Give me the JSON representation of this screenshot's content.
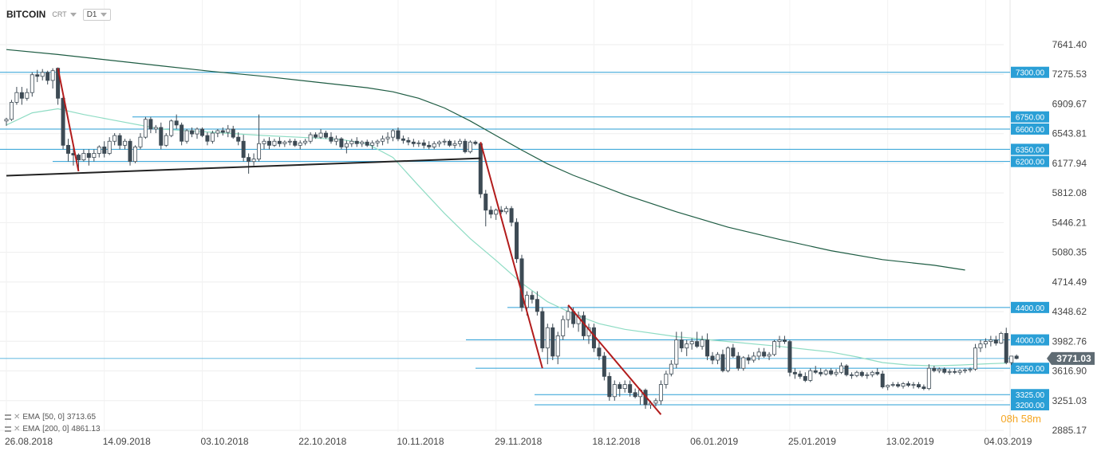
{
  "header": {
    "symbol": "BITCOIN",
    "market": "CRT",
    "timeframe": "D1"
  },
  "indicators": [
    {
      "label": "EMA",
      "params": "[50, 0]",
      "value": "3713.65",
      "color": "#8fdcc4"
    },
    {
      "label": "EMA",
      "params": "[200, 0]",
      "value": "4861.13",
      "color": "#1e5c43"
    }
  ],
  "timer": "08h 58m",
  "colors": {
    "up": "#ffffff",
    "down": "#3d4a54",
    "hline": "#2a9fd6",
    "trend": "#222222",
    "red": "#b21c1c",
    "price_tag": "#5f6b73"
  },
  "chart_data": {
    "type": "candlestick",
    "y_ticks": [
      "7641.40",
      "7275.53",
      "6909.67",
      "6543.81",
      "6177.94",
      "5812.08",
      "5446.21",
      "5080.35",
      "4714.49",
      "4348.62",
      "3982.76",
      "3616.90",
      "3251.03",
      "2885.17"
    ],
    "x_ticks": [
      "26.08.2018",
      "14.09.2018",
      "03.10.2018",
      "22.10.2018",
      "10.11.2018",
      "29.11.2018",
      "18.12.2018",
      "06.01.2019",
      "25.01.2019",
      "13.02.2019",
      "04.03.2019"
    ],
    "x_start": "2018-08-26",
    "ylim": [
      2885.17,
      7641.4
    ],
    "current_price": "3771.03",
    "levels": [
      "7300.00",
      "6750.00",
      "6600.00",
      "6350.00",
      "6200.00",
      "4400.00",
      "4000.00",
      "3650.00",
      "3325.00",
      "3200.00"
    ],
    "ema50": [
      [
        0,
        6650
      ],
      [
        5,
        6800
      ],
      [
        10,
        6850
      ],
      [
        15,
        6780
      ],
      [
        20,
        6720
      ],
      [
        30,
        6600
      ],
      [
        40,
        6560
      ],
      [
        50,
        6520
      ],
      [
        60,
        6490
      ],
      [
        65,
        6470
      ],
      [
        70,
        6420
      ],
      [
        75,
        6250
      ],
      [
        80,
        5900
      ],
      [
        85,
        5560
      ],
      [
        90,
        5250
      ],
      [
        95,
        4980
      ],
      [
        100,
        4700
      ],
      [
        105,
        4470
      ],
      [
        110,
        4320
      ],
      [
        115,
        4200
      ],
      [
        120,
        4130
      ],
      [
        130,
        4040
      ],
      [
        140,
        3980
      ],
      [
        150,
        3920
      ],
      [
        160,
        3850
      ],
      [
        165,
        3790
      ],
      [
        170,
        3720
      ],
      [
        175,
        3690
      ],
      [
        180,
        3680
      ],
      [
        185,
        3690
      ],
      [
        190,
        3705
      ],
      [
        194,
        3713.65
      ]
    ],
    "ema200": [
      [
        0,
        7580
      ],
      [
        10,
        7520
      ],
      [
        20,
        7450
      ],
      [
        30,
        7380
      ],
      [
        40,
        7310
      ],
      [
        50,
        7250
      ],
      [
        60,
        7180
      ],
      [
        70,
        7110
      ],
      [
        75,
        7060
      ],
      [
        80,
        6980
      ],
      [
        85,
        6860
      ],
      [
        90,
        6700
      ],
      [
        95,
        6520
      ],
      [
        100,
        6340
      ],
      [
        105,
        6170
      ],
      [
        110,
        6030
      ],
      [
        120,
        5790
      ],
      [
        130,
        5580
      ],
      [
        140,
        5390
      ],
      [
        150,
        5240
      ],
      [
        160,
        5100
      ],
      [
        170,
        4990
      ],
      [
        180,
        4920
      ],
      [
        186,
        4861.13
      ]
    ],
    "trendlines": [
      {
        "color": "trend",
        "points": [
          [
            0,
            6025
          ],
          [
            92,
            6240
          ]
        ]
      },
      {
        "color": "red",
        "points": [
          [
            10,
            7350
          ],
          [
            14,
            6080
          ]
        ]
      },
      {
        "color": "red",
        "points": [
          [
            92,
            6440
          ],
          [
            104,
            3650
          ]
        ]
      },
      {
        "color": "red",
        "points": [
          [
            109,
            4430
          ],
          [
            127,
            3080
          ]
        ]
      }
    ],
    "candles": [
      [
        6700,
        6740,
        6640,
        6720
      ],
      [
        6720,
        6960,
        6700,
        6930
      ],
      [
        6930,
        7120,
        6900,
        7050
      ],
      [
        7050,
        7120,
        6900,
        6980
      ],
      [
        6980,
        7100,
        6950,
        7050
      ],
      [
        7050,
        7300,
        7000,
        7270
      ],
      [
        7270,
        7330,
        7180,
        7250
      ],
      [
        7250,
        7340,
        7200,
        7300
      ],
      [
        7300,
        7320,
        7150,
        7200
      ],
      [
        7200,
        7350,
        7100,
        7320
      ],
      [
        7350,
        7360,
        6900,
        6980
      ],
      [
        6980,
        7000,
        6350,
        6400
      ],
      [
        6400,
        6480,
        6200,
        6300
      ],
      [
        6300,
        6420,
        6150,
        6280
      ],
      [
        6280,
        6300,
        6100,
        6220
      ],
      [
        6220,
        6350,
        6200,
        6300
      ],
      [
        6300,
        6350,
        6150,
        6250
      ],
      [
        6250,
        6350,
        6200,
        6300
      ],
      [
        6300,
        6400,
        6250,
        6380
      ],
      [
        6380,
        6450,
        6250,
        6300
      ],
      [
        6300,
        6500,
        6280,
        6450
      ],
      [
        6450,
        6550,
        6400,
        6520
      ],
      [
        6520,
        6550,
        6350,
        6400
      ],
      [
        6400,
        6480,
        6350,
        6450
      ],
      [
        6450,
        6480,
        6150,
        6200
      ],
      [
        6200,
        6400,
        6180,
        6380
      ],
      [
        6380,
        6550,
        6350,
        6500
      ],
      [
        6500,
        6750,
        6480,
        6720
      ],
      [
        6720,
        6750,
        6550,
        6600
      ],
      [
        6600,
        6650,
        6550,
        6620
      ],
      [
        6620,
        6680,
        6350,
        6400
      ],
      [
        6400,
        6550,
        6380,
        6520
      ],
      [
        6520,
        6720,
        6500,
        6700
      ],
      [
        6700,
        6780,
        6600,
        6650
      ],
      [
        6650,
        6680,
        6400,
        6450
      ],
      [
        6450,
        6600,
        6420,
        6580
      ],
      [
        6580,
        6620,
        6500,
        6540
      ],
      [
        6540,
        6620,
        6480,
        6600
      ],
      [
        6600,
        6620,
        6500,
        6520
      ],
      [
        6520,
        6560,
        6400,
        6450
      ],
      [
        6450,
        6580,
        6420,
        6550
      ],
      [
        6550,
        6600,
        6500,
        6580
      ],
      [
        6580,
        6620,
        6520,
        6560
      ],
      [
        6560,
        6650,
        6500,
        6600
      ],
      [
        6600,
        6640,
        6480,
        6500
      ],
      [
        6500,
        6560,
        6400,
        6450
      ],
      [
        6450,
        6530,
        6200,
        6250
      ],
      [
        6250,
        6300,
        6050,
        6200
      ],
      [
        6200,
        6300,
        6150,
        6230
      ],
      [
        6230,
        6780,
        6200,
        6420
      ],
      [
        6420,
        6480,
        6350,
        6450
      ],
      [
        6450,
        6500,
        6350,
        6400
      ],
      [
        6400,
        6480,
        6380,
        6450
      ],
      [
        6450,
        6500,
        6380,
        6420
      ],
      [
        6420,
        6460,
        6380,
        6440
      ],
      [
        6440,
        6480,
        6400,
        6450
      ],
      [
        6450,
        6480,
        6380,
        6400
      ],
      [
        6400,
        6460,
        6350,
        6430
      ],
      [
        6430,
        6480,
        6400,
        6450
      ],
      [
        6450,
        6560,
        6420,
        6530
      ],
      [
        6530,
        6560,
        6480,
        6500
      ],
      [
        6500,
        6600,
        6480,
        6550
      ],
      [
        6550,
        6580,
        6480,
        6500
      ],
      [
        6500,
        6560,
        6420,
        6450
      ],
      [
        6450,
        6520,
        6400,
        6480
      ],
      [
        6480,
        6500,
        6350,
        6380
      ],
      [
        6380,
        6460,
        6300,
        6420
      ],
      [
        6420,
        6480,
        6380,
        6450
      ],
      [
        6450,
        6500,
        6380,
        6420
      ],
      [
        6420,
        6460,
        6380,
        6440
      ],
      [
        6440,
        6470,
        6380,
        6400
      ],
      [
        6400,
        6460,
        6350,
        6430
      ],
      [
        6430,
        6470,
        6380,
        6450
      ],
      [
        6450,
        6520,
        6400,
        6480
      ],
      [
        6480,
        6560,
        6420,
        6500
      ],
      [
        6500,
        6600,
        6450,
        6580
      ],
      [
        6580,
        6620,
        6450,
        6480
      ],
      [
        6480,
        6520,
        6420,
        6460
      ],
      [
        6460,
        6500,
        6400,
        6440
      ],
      [
        6440,
        6480,
        6380,
        6420
      ],
      [
        6420,
        6460,
        6380,
        6430
      ],
      [
        6430,
        6470,
        6360,
        6400
      ],
      [
        6400,
        6450,
        6350,
        6380
      ],
      [
        6380,
        6450,
        6350,
        6420
      ],
      [
        6420,
        6460,
        6380,
        6440
      ],
      [
        6440,
        6480,
        6400,
        6450
      ],
      [
        6450,
        6470,
        6380,
        6400
      ],
      [
        6400,
        6460,
        6360,
        6420
      ],
      [
        6420,
        6480,
        6380,
        6450
      ],
      [
        6450,
        6480,
        6300,
        6320
      ],
      [
        6320,
        6460,
        6300,
        6440
      ],
      [
        6440,
        6460,
        6400,
        6420
      ],
      [
        6420,
        6430,
        5750,
        5800
      ],
      [
        5800,
        5850,
        5400,
        5600
      ],
      [
        5600,
        5650,
        5500,
        5550
      ],
      [
        5550,
        5620,
        5480,
        5600
      ],
      [
        5600,
        5650,
        5550,
        5580
      ],
      [
        5580,
        5650,
        5550,
        5620
      ],
      [
        5620,
        5650,
        5400,
        5450
      ],
      [
        5450,
        5500,
        4950,
        5000
      ],
      [
        5000,
        5050,
        4350,
        4400
      ],
      [
        4400,
        4600,
        4300,
        4550
      ],
      [
        4550,
        4600,
        4450,
        4500
      ],
      [
        4500,
        4600,
        4300,
        4350
      ],
      [
        4350,
        4400,
        3850,
        3900
      ],
      [
        3900,
        4200,
        3700,
        4150
      ],
      [
        4150,
        4200,
        3750,
        3800
      ],
      [
        3800,
        4100,
        3700,
        4050
      ],
      [
        4050,
        4300,
        4000,
        4250
      ],
      [
        4250,
        4420,
        4150,
        4350
      ],
      [
        4350,
        4400,
        4150,
        4200
      ],
      [
        4200,
        4350,
        4100,
        4300
      ],
      [
        4300,
        4350,
        4000,
        4050
      ],
      [
        4050,
        4200,
        3950,
        4150
      ],
      [
        4150,
        4200,
        3850,
        3900
      ],
      [
        3900,
        3980,
        3750,
        3800
      ],
      [
        3800,
        3850,
        3500,
        3550
      ],
      [
        3550,
        3600,
        3250,
        3300
      ],
      [
        3300,
        3500,
        3250,
        3450
      ],
      [
        3450,
        3480,
        3300,
        3400
      ],
      [
        3400,
        3500,
        3350,
        3450
      ],
      [
        3450,
        3500,
        3300,
        3350
      ],
      [
        3350,
        3400,
        3280,
        3300
      ],
      [
        3300,
        3400,
        3200,
        3380
      ],
      [
        3380,
        3400,
        3150,
        3200
      ],
      [
        3200,
        3250,
        3150,
        3220
      ],
      [
        3220,
        3280,
        3180,
        3250
      ],
      [
        3250,
        3500,
        3200,
        3450
      ],
      [
        3450,
        3620,
        3400,
        3580
      ],
      [
        3580,
        3750,
        3550,
        3700
      ],
      [
        3700,
        4100,
        3650,
        4000
      ],
      [
        4000,
        4100,
        3850,
        3900
      ],
      [
        3900,
        4000,
        3800,
        3950
      ],
      [
        3950,
        4020,
        3880,
        3980
      ],
      [
        3980,
        4100,
        3900,
        3920
      ],
      [
        3920,
        4050,
        3880,
        4000
      ],
      [
        4000,
        4080,
        3750,
        3800
      ],
      [
        3800,
        3850,
        3700,
        3750
      ],
      [
        3750,
        3850,
        3700,
        3820
      ],
      [
        3820,
        3880,
        3600,
        3620
      ],
      [
        3620,
        3920,
        3600,
        3900
      ],
      [
        3900,
        3950,
        3780,
        3800
      ],
      [
        3800,
        3850,
        3620,
        3650
      ],
      [
        3650,
        3800,
        3620,
        3780
      ],
      [
        3780,
        3820,
        3700,
        3750
      ],
      [
        3750,
        3850,
        3720,
        3800
      ],
      [
        3800,
        3900,
        3750,
        3850
      ],
      [
        3850,
        3900,
        3780,
        3800
      ],
      [
        3800,
        3850,
        3750,
        3820
      ],
      [
        3820,
        4000,
        3800,
        3980
      ],
      [
        3980,
        4050,
        3900,
        4000
      ],
      [
        4000,
        4050,
        3950,
        3980
      ],
      [
        3980,
        4000,
        3550,
        3600
      ],
      [
        3600,
        3650,
        3520,
        3580
      ],
      [
        3580,
        3620,
        3520,
        3550
      ],
      [
        3550,
        3600,
        3480,
        3500
      ],
      [
        3500,
        3650,
        3480,
        3620
      ],
      [
        3620,
        3680,
        3580,
        3600
      ],
      [
        3600,
        3650,
        3550,
        3580
      ],
      [
        3580,
        3640,
        3560,
        3620
      ],
      [
        3620,
        3650,
        3560,
        3580
      ],
      [
        3580,
        3640,
        3550,
        3600
      ],
      [
        3600,
        3720,
        3580,
        3680
      ],
      [
        3680,
        3700,
        3550,
        3570
      ],
      [
        3570,
        3600,
        3520,
        3560
      ],
      [
        3560,
        3620,
        3540,
        3600
      ],
      [
        3600,
        3620,
        3540,
        3560
      ],
      [
        3560,
        3600,
        3520,
        3570
      ],
      [
        3570,
        3620,
        3540,
        3600
      ],
      [
        3600,
        3650,
        3560,
        3580
      ],
      [
        3580,
        3620,
        3400,
        3420
      ],
      [
        3420,
        3450,
        3380,
        3440
      ],
      [
        3440,
        3480,
        3420,
        3450
      ],
      [
        3450,
        3480,
        3410,
        3430
      ],
      [
        3430,
        3480,
        3400,
        3460
      ],
      [
        3460,
        3490,
        3420,
        3440
      ],
      [
        3440,
        3480,
        3400,
        3450
      ],
      [
        3450,
        3480,
        3400,
        3420
      ],
      [
        3420,
        3450,
        3380,
        3400
      ],
      [
        3400,
        3700,
        3380,
        3650
      ],
      [
        3650,
        3680,
        3600,
        3620
      ],
      [
        3620,
        3660,
        3590,
        3640
      ],
      [
        3640,
        3660,
        3580,
        3600
      ],
      [
        3600,
        3640,
        3570,
        3610
      ],
      [
        3610,
        3650,
        3580,
        3600
      ],
      [
        3600,
        3640,
        3570,
        3620
      ],
      [
        3620,
        3650,
        3590,
        3630
      ],
      [
        3630,
        3660,
        3600,
        3640
      ],
      [
        3640,
        3950,
        3620,
        3900
      ],
      [
        3900,
        4000,
        3850,
        3950
      ],
      [
        3950,
        4020,
        3900,
        3980
      ],
      [
        3980,
        4050,
        3920,
        4000
      ],
      [
        4000,
        4050,
        3930,
        3960
      ],
      [
        3960,
        4100,
        3950,
        4080
      ],
      [
        4080,
        4150,
        3700,
        3720
      ],
      [
        3720,
        3800,
        3690,
        3800
      ],
      [
        3800,
        3820,
        3760,
        3771.03
      ]
    ]
  }
}
